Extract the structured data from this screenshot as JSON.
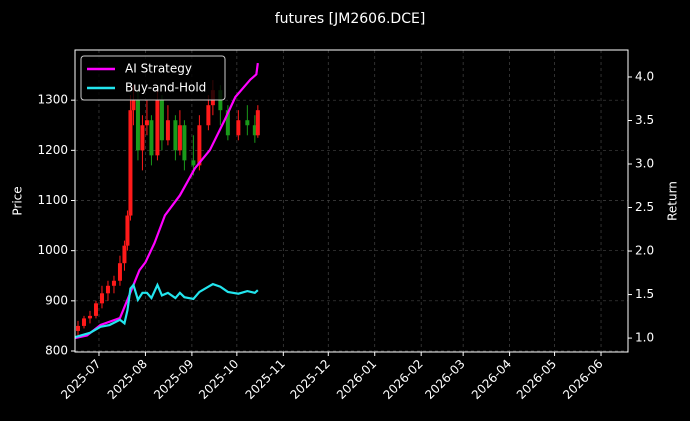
{
  "chart_data": {
    "type": "candlestick",
    "title": "futures [JM2606.DCE]",
    "ylabel": "Price",
    "y2label": "Return",
    "x": [
      -14,
      -10,
      -6,
      -2,
      2,
      6,
      10,
      14,
      17,
      19,
      21,
      23,
      26,
      29,
      32,
      35,
      39,
      42,
      46,
      51,
      54,
      57,
      63,
      67,
      73,
      76,
      81,
      86,
      93,
      99,
      104,
      106
    ],
    "open": [
      840,
      850,
      865,
      870,
      895,
      915,
      930,
      940,
      975,
      1010,
      1070,
      1280,
      1300,
      1200,
      1250,
      1260,
      1190,
      1300,
      1220,
      1260,
      1200,
      1250,
      1180,
      1170,
      1250,
      1290,
      1320,
      1280,
      1230,
      1260,
      1250,
      1230
    ],
    "high": [
      860,
      870,
      880,
      900,
      930,
      940,
      950,
      990,
      1020,
      1080,
      1310,
      1330,
      1320,
      1270,
      1300,
      1270,
      1320,
      1310,
      1290,
      1270,
      1280,
      1260,
      1230,
      1270,
      1310,
      1340,
      1330,
      1290,
      1280,
      1290,
      1270,
      1290
    ],
    "low": [
      830,
      845,
      855,
      865,
      885,
      900,
      915,
      930,
      960,
      1000,
      1060,
      1250,
      1180,
      1160,
      1230,
      1170,
      1180,
      1200,
      1210,
      1180,
      1190,
      1160,
      1150,
      1160,
      1240,
      1270,
      1250,
      1220,
      1220,
      1230,
      1215,
      1225
    ],
    "close": [
      850,
      865,
      870,
      895,
      915,
      930,
      940,
      975,
      1010,
      1070,
      1280,
      1300,
      1200,
      1250,
      1260,
      1190,
      1300,
      1220,
      1260,
      1200,
      1250,
      1180,
      1170,
      1250,
      1290,
      1320,
      1280,
      1230,
      1260,
      1250,
      1230,
      1280
    ],
    "up_color": "#ff1a1a",
    "down_color": "#1a9a1a",
    "series": [
      {
        "name": "AI Strategy",
        "color": "#ff00ff",
        "axis": "y2",
        "x": [
          -16,
          -8,
          1,
          14,
          19,
          27,
          31,
          37,
          44,
          54,
          64,
          74,
          84,
          91,
          101,
          105,
          106
        ],
        "values": [
          1.0,
          1.03,
          1.15,
          1.23,
          1.44,
          1.78,
          1.87,
          2.09,
          2.41,
          2.64,
          2.95,
          3.16,
          3.51,
          3.77,
          3.97,
          4.03,
          4.16
        ]
      },
      {
        "name": "Buy-and-Hold",
        "color": "#22e5ee",
        "axis": "y2",
        "x": [
          -16,
          -6,
          1,
          7,
          14,
          17,
          19,
          21,
          23,
          26,
          29,
          32,
          35,
          39,
          42,
          46,
          51,
          54,
          57,
          63,
          67,
          73,
          76,
          81,
          86,
          93,
          99,
          104,
          106
        ],
        "values": [
          1.01,
          1.06,
          1.13,
          1.15,
          1.21,
          1.17,
          1.32,
          1.57,
          1.61,
          1.44,
          1.52,
          1.52,
          1.46,
          1.61,
          1.49,
          1.52,
          1.46,
          1.52,
          1.47,
          1.45,
          1.53,
          1.59,
          1.62,
          1.59,
          1.53,
          1.51,
          1.54,
          1.52,
          1.55
        ]
      }
    ],
    "xlim": [
      -16,
      353
    ],
    "xticks": [
      {
        "value": 0,
        "label": "2025-07"
      },
      {
        "value": 31,
        "label": "2025-08"
      },
      {
        "value": 62,
        "label": "2025-09"
      },
      {
        "value": 92,
        "label": "2025-10"
      },
      {
        "value": 123,
        "label": "2025-11"
      },
      {
        "value": 153,
        "label": "2025-12"
      },
      {
        "value": 184,
        "label": "2026-01"
      },
      {
        "value": 215,
        "label": "2026-02"
      },
      {
        "value": 243,
        "label": "2026-03"
      },
      {
        "value": 274,
        "label": "2026-04"
      },
      {
        "value": 304,
        "label": "2026-05"
      },
      {
        "value": 335,
        "label": "2026-06"
      }
    ],
    "ylim": [
      798,
      1400
    ],
    "yticks": [
      800,
      900,
      1000,
      1100,
      1200,
      1300
    ],
    "y2lim": [
      0.84,
      4.31
    ],
    "y2ticks": [
      {
        "value": 1,
        "label": "1.0"
      },
      1.5,
      {
        "value": 2,
        "label": "2.0"
      },
      2.5,
      {
        "value": 3,
        "label": "3.0"
      },
      3.5,
      {
        "value": 4,
        "label": "4.0"
      }
    ],
    "grid": true,
    "legend": "upper-left"
  }
}
